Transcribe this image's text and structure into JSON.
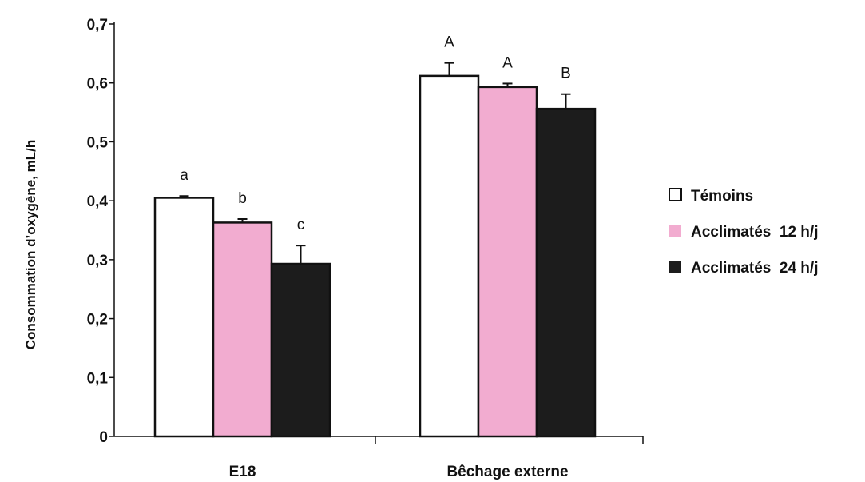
{
  "chart_data": {
    "type": "bar",
    "title": "",
    "xlabel": "",
    "ylabel": "Consommation d’oxygène, mL/h",
    "ylim": [
      0,
      0.7
    ],
    "yticks": [
      0,
      0.1,
      0.2,
      0.3,
      0.4,
      0.5,
      0.6,
      0.7
    ],
    "ytick_labels": [
      "0",
      "0,1",
      "0,2",
      "0,3",
      "0,4",
      "0,5",
      "0,6",
      "0,7"
    ],
    "categories": [
      "E18",
      "Bêchage externe"
    ],
    "series": [
      {
        "name": "Témoins",
        "color": "#ffffff",
        "values": [
          0.405,
          0.612
        ],
        "errors": [
          0.003,
          0.022
        ],
        "sig_labels": [
          "a",
          "A"
        ]
      },
      {
        "name": "Acclimatés  12 h/j",
        "color": "#f2acd0",
        "values": [
          0.363,
          0.593
        ],
        "errors": [
          0.006,
          0.006
        ],
        "sig_labels": [
          "b",
          "A"
        ]
      },
      {
        "name": "Acclimatés  24 h/j",
        "color": "#1c1c1c",
        "values": [
          0.293,
          0.556
        ],
        "errors": [
          0.031,
          0.025
        ],
        "sig_labels": [
          "c",
          "B"
        ]
      }
    ],
    "grid": false,
    "legend_position": "right"
  }
}
